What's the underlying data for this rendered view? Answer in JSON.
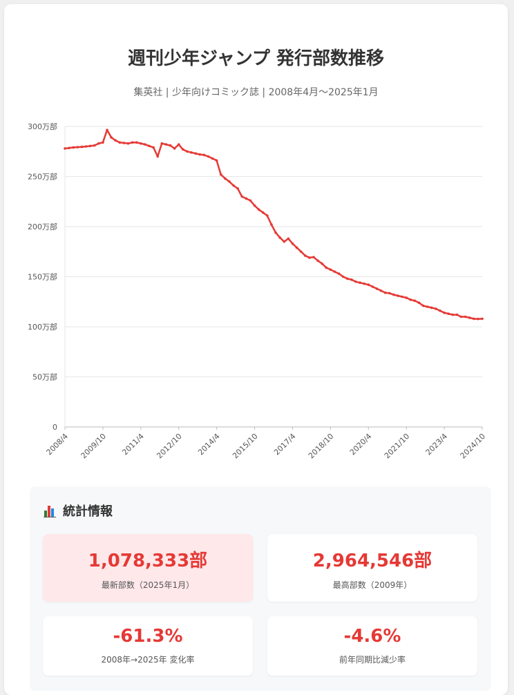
{
  "title": "週刊少年ジャンプ 発行部数推移",
  "subtitle": "集英社 | 少年向けコミック誌 | 2008年4月〜2025年1月",
  "colors": {
    "line": "#e53935",
    "accent": "#e53935",
    "highlight_bg": "#ffe8ea"
  },
  "chart_data": {
    "type": "line",
    "x_start": "2008/4",
    "x_end": "2025/1",
    "x_ticks": [
      "2008/4",
      "2009/10",
      "2011/4",
      "2012/10",
      "2014/4",
      "2015/10",
      "2017/4",
      "2018/10",
      "2020/4",
      "2021/10",
      "2023/4",
      "2024/10"
    ],
    "y_ticks": [
      "0",
      "50万部",
      "100万部",
      "150万部",
      "200万部",
      "250万部",
      "300万部"
    ],
    "ylim": [
      0,
      300
    ],
    "yunit": "万部",
    "grid": true,
    "series": [
      {
        "values": [
          278,
          278.5,
          279,
          279.3,
          279.6,
          280,
          280.5,
          281,
          283,
          284,
          296.4,
          289,
          286,
          284,
          283.5,
          283,
          284,
          284,
          283,
          282,
          280.5,
          279,
          270,
          283,
          282,
          281,
          278,
          282,
          277,
          275,
          274,
          273,
          272,
          271.5,
          270,
          268,
          266,
          252,
          248,
          245,
          241,
          238,
          230,
          228,
          226,
          221,
          217,
          214,
          211,
          202,
          194,
          189,
          185,
          188,
          183,
          179,
          175,
          171,
          169,
          169.5,
          166,
          163,
          159,
          157,
          155,
          153,
          150,
          148,
          147,
          145,
          144,
          143,
          142,
          140,
          138,
          136,
          134,
          133.5,
          132,
          131,
          130,
          129,
          127,
          126,
          124,
          121,
          120,
          119,
          118,
          116,
          114,
          113,
          112,
          112,
          110,
          110,
          109,
          108,
          107.8,
          108
        ]
      }
    ]
  },
  "stats": {
    "heading": "統計情報",
    "icon": "bar-chart-icon",
    "items": [
      {
        "value": "1,078,333部",
        "label": "最新部数（2025年1月）",
        "highlight": true
      },
      {
        "value": "2,964,546部",
        "label": "最高部数（2009年）",
        "highlight": false
      },
      {
        "value": "-61.3%",
        "label": "2008年→2025年 変化率",
        "highlight": false
      },
      {
        "value": "-4.6%",
        "label": "前年同期比減少率",
        "highlight": false
      }
    ]
  }
}
